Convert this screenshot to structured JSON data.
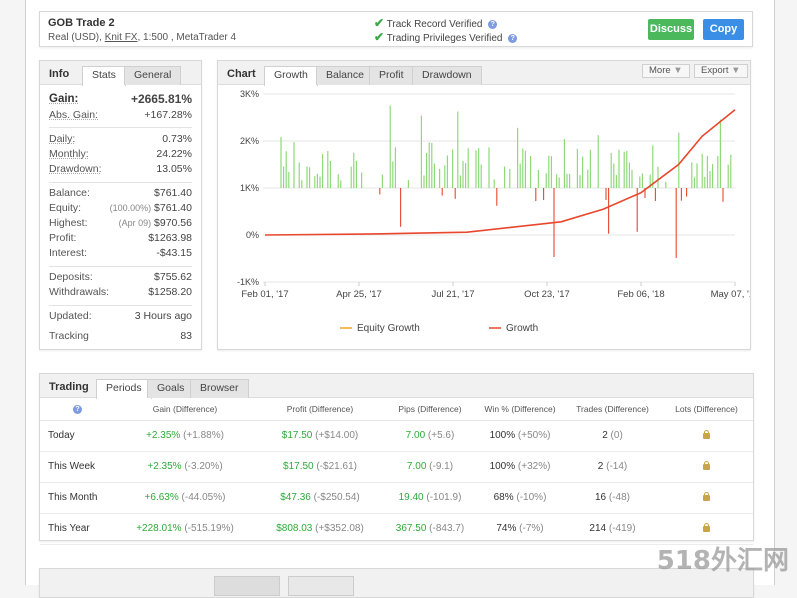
{
  "header": {
    "account_name": "GOB Trade 2",
    "account_type": "Real (USD),",
    "broker": "Knit FX",
    "leverage_platform": ", 1:500 , MetaTrader 4",
    "verified_1": "Track Record Verified",
    "verified_2": "Trading Privileges Verified",
    "discuss_label": "Discuss",
    "copy_label": "Copy"
  },
  "info_panel": {
    "tab_info": "Info",
    "tab_stats": "Stats",
    "tab_general": "General",
    "gain_label": "Gain:",
    "gain_value": "+2665.81%",
    "abs_gain_label": "Abs. Gain:",
    "abs_gain_value": "+167.28%",
    "daily_label": "Daily:",
    "daily_value": "0.73%",
    "monthly_label": "Monthly:",
    "monthly_value": "24.22%",
    "drawdown_label": "Drawdown:",
    "drawdown_value": "13.05%",
    "balance_label": "Balance:",
    "balance_value": "$761.40",
    "equity_label": "Equity:",
    "equity_pct": "(100.00%)",
    "equity_value": "$761.40",
    "highest_label": "Highest:",
    "highest_date": "(Apr 09)",
    "highest_value": "$970.56",
    "profit_label": "Profit:",
    "profit_value": "$1263.98",
    "interest_label": "Interest:",
    "interest_value": "-$43.15",
    "deposits_label": "Deposits:",
    "deposits_value": "$755.62",
    "withdrawals_label": "Withdrawals:",
    "withdrawals_value": "$1258.20",
    "updated_label": "Updated:",
    "updated_value": "3 Hours ago",
    "tracking_label": "Tracking",
    "tracking_value": "83"
  },
  "chart_panel": {
    "label": "Chart",
    "tabs": [
      "Growth",
      "Balance",
      "Profit",
      "Drawdown"
    ],
    "more_label": "More",
    "export_label": "Export"
  },
  "chart_data": {
    "type": "line",
    "y_ticks": [
      "3K%",
      "2K%",
      "1K%",
      "0%",
      "-1K%"
    ],
    "x_ticks": [
      "Feb 01, '17",
      "Apr 25, '17",
      "Jul 21, '17",
      "Oct 23, '17",
      "Feb 06, '18",
      "May 07, '18"
    ],
    "ylim": [
      -1000,
      3000
    ],
    "legend_position": "bottom",
    "series": [
      {
        "name": "Equity Growth",
        "color": "#f5a623"
      },
      {
        "name": "Growth",
        "color": "#e8472c",
        "x": [
          "Feb 01, '17",
          "Apr 25, '17",
          "Jul 21, '17",
          "Oct 23, '17",
          "Dec 15, '17",
          "Feb 06, '18",
          "Mar 20, '18",
          "Apr 10, '18",
          "May 07, '18"
        ],
        "values": [
          0,
          20,
          60,
          280,
          550,
          900,
          1500,
          2100,
          2666
        ]
      }
    ],
    "bars_color": "#8fd97a",
    "neg_bars_color": "#e8472c"
  },
  "trading_panel": {
    "label": "Trading",
    "tabs": [
      "Periods",
      "Goals",
      "Browser"
    ],
    "columns": [
      "Gain (Difference)",
      "Profit (Difference)",
      "Pips (Difference)",
      "Win % (Difference)",
      "Trades (Difference)",
      "Lots (Difference)"
    ],
    "rows": [
      {
        "period": "Today",
        "gain": "+2.35%",
        "gain_diff": "(+1.88%)",
        "profit": "$17.50",
        "profit_diff": "(+$14.00)",
        "pips": "7.00",
        "pips_diff": "(+5.6)",
        "win": "100%",
        "win_diff": "(+50%)",
        "trades": "2",
        "trades_diff": "(0)"
      },
      {
        "period": "This Week",
        "gain": "+2.35%",
        "gain_diff": "(-3.20%)",
        "profit": "$17.50",
        "profit_diff": "(-$21.61)",
        "pips": "7.00",
        "pips_diff": "(-9.1)",
        "win": "100%",
        "win_diff": "(+32%)",
        "trades": "2",
        "trades_diff": "(-14)"
      },
      {
        "period": "This Month",
        "gain": "+6.63%",
        "gain_diff": "(-44.05%)",
        "profit": "$47.36",
        "profit_diff": "(-$250.54)",
        "pips": "19.40",
        "pips_diff": "(-101.9)",
        "win": "68%",
        "win_diff": "(-10%)",
        "trades": "16",
        "trades_diff": "(-48)"
      },
      {
        "period": "This Year",
        "gain": "+228.01%",
        "gain_diff": "(-515.19%)",
        "profit": "$808.03",
        "profit_diff": "(+$352.08)",
        "pips": "367.50",
        "pips_diff": "(-843.7)",
        "win": "74%",
        "win_diff": "(-7%)",
        "trades": "214",
        "trades_diff": "(-419)"
      }
    ]
  },
  "watermark": "518外汇网"
}
